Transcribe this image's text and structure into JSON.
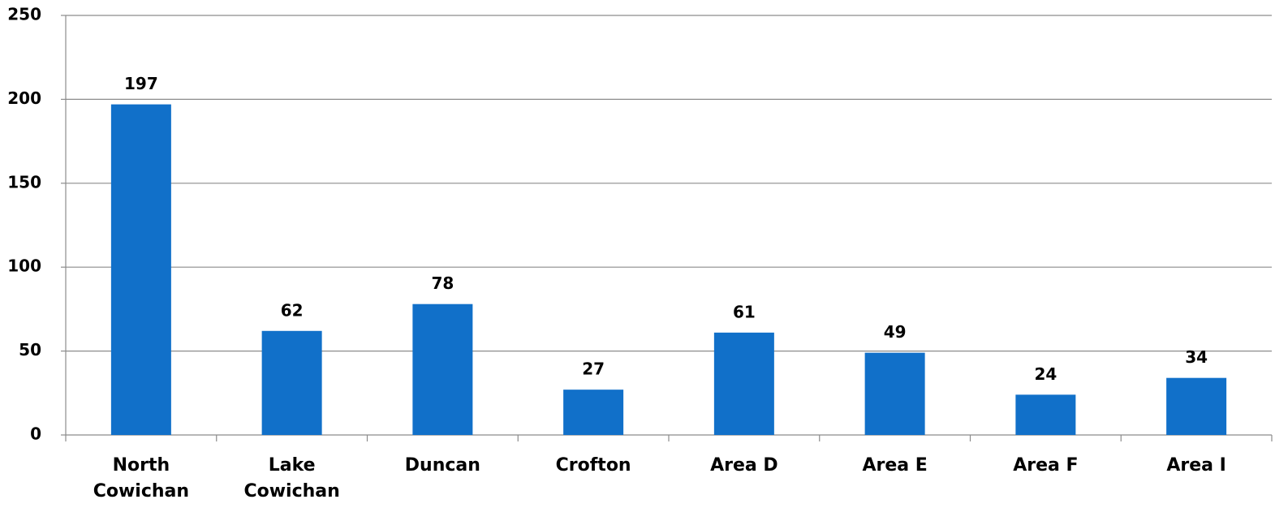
{
  "chart_data": {
    "type": "bar",
    "categories": [
      "North Cowichan",
      "Lake Cowichan",
      "Duncan",
      "Crofton",
      "Area D",
      "Area E",
      "Area F",
      "Area I"
    ],
    "values": [
      197,
      62,
      78,
      27,
      61,
      49,
      24,
      34
    ],
    "color": "#1170c9",
    "ylim": [
      0,
      250
    ],
    "yticks": [
      0,
      50,
      100,
      150,
      200,
      250
    ],
    "grid": true
  }
}
